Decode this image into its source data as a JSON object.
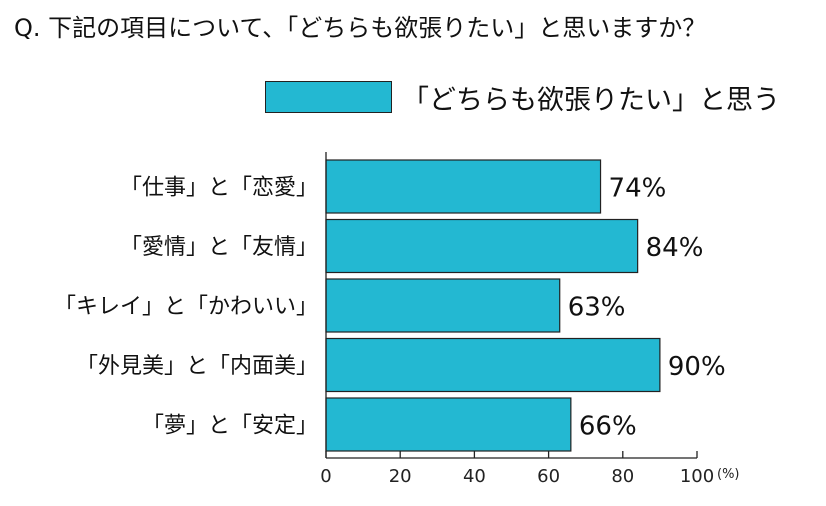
{
  "title": "Q. 下記の項目について、「どちらも欲張りたい」と思いますか？",
  "chart_data": {
    "type": "bar",
    "orientation": "horizontal",
    "categories": [
      "「仕事」と「恋愛」",
      "「愛情」と「友情」",
      "「キレイ」と「かわいい」",
      "「外見美」と「内面美」",
      "「夢」と「安定」"
    ],
    "series": [
      {
        "name": "「どちらも欲張りたい」と思う",
        "values": [
          74,
          84,
          63,
          90,
          66
        ]
      }
    ],
    "value_labels": [
      "74%",
      "84%",
      "63%",
      "90%",
      "66%"
    ],
    "xlim": [
      0,
      100
    ],
    "xticks": [
      "0",
      "20",
      "40",
      "60",
      "80",
      "100"
    ],
    "x_unit": "(%)",
    "legend_position": "top",
    "bar_color": "#23b8d2",
    "grid": false
  }
}
